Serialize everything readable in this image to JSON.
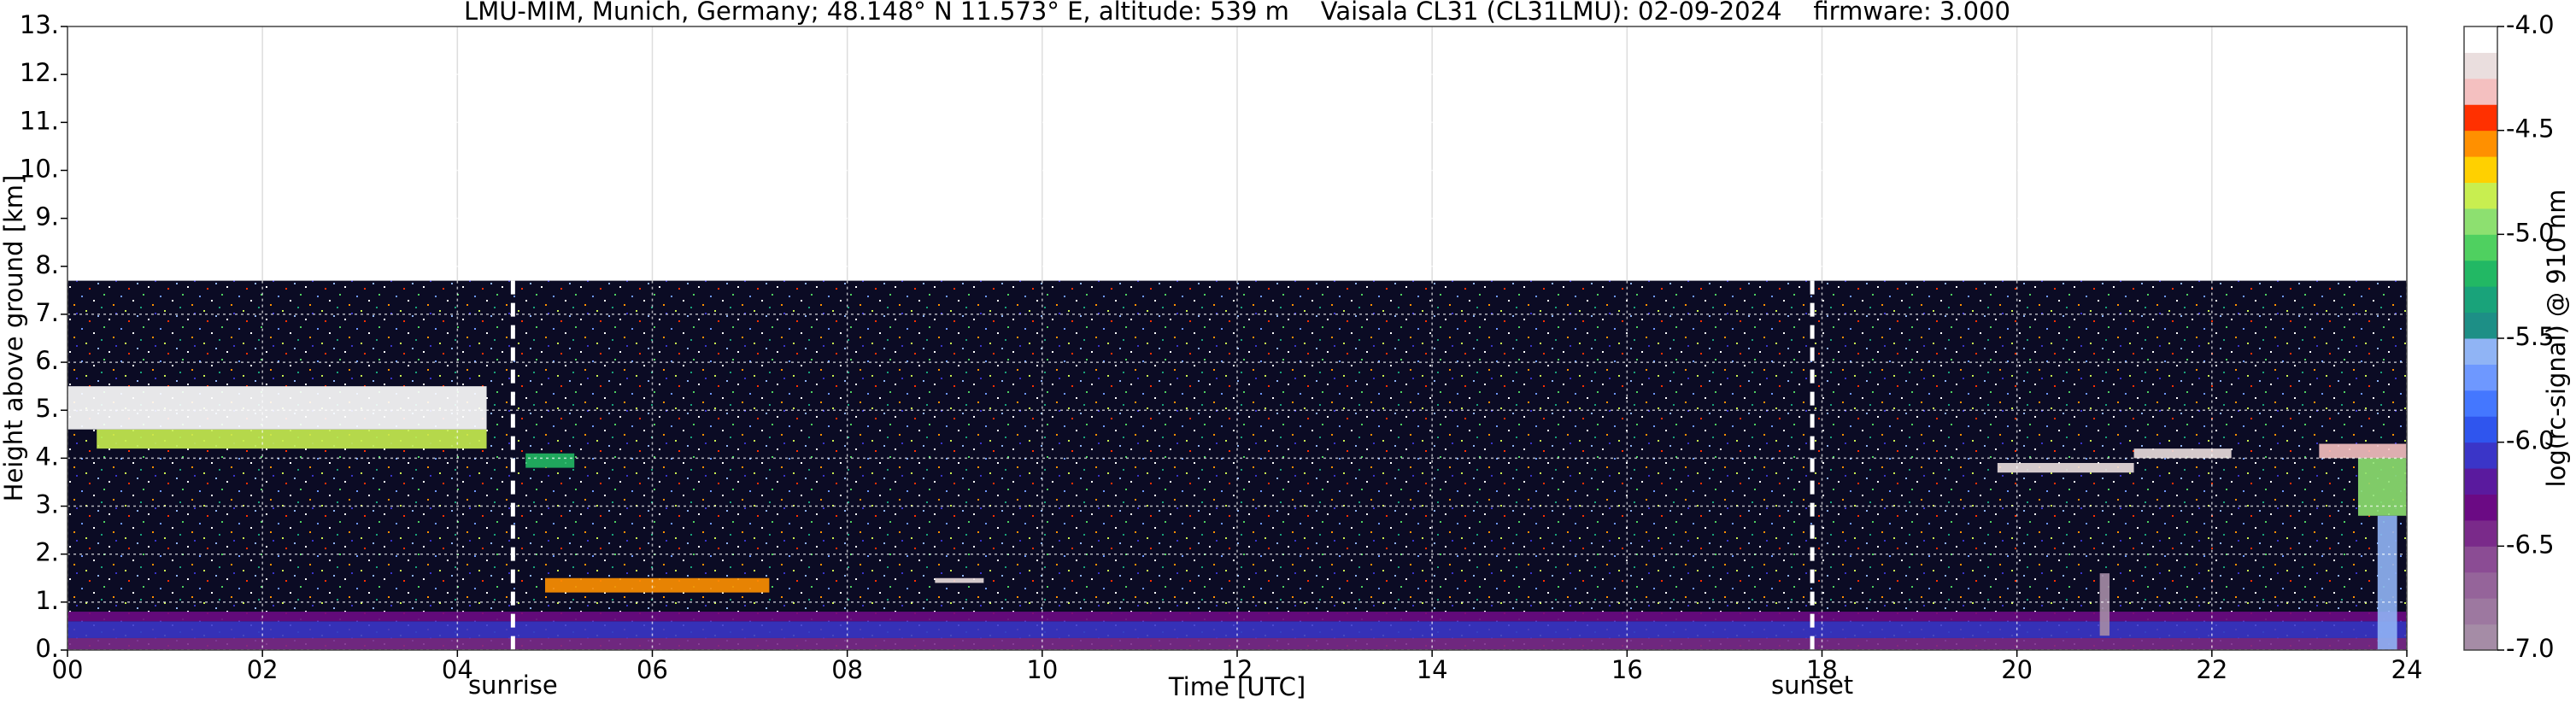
{
  "chart_data": {
    "type": "heatmap",
    "title": "LMU-MIM, Munich, Germany; 48.148° N 11.573° E, altitude: 539 m    Vaisala CL31 (CL31LMU): 02-09-2024    firmware: 3.000",
    "xlabel": "Time [UTC]",
    "ylabel": "Height above ground [km]",
    "colorbar_label": "log(rc-signal) @ 910 nm",
    "xlim": [
      0,
      24
    ],
    "ylim": [
      0,
      13
    ],
    "xticks": [
      {
        "value": 0,
        "label": "00"
      },
      {
        "value": 2,
        "label": "02"
      },
      {
        "value": 4,
        "label": "04"
      },
      {
        "value": 6,
        "label": "06"
      },
      {
        "value": 8,
        "label": "08"
      },
      10,
      12,
      14,
      16,
      18,
      20,
      22,
      24
    ],
    "yticks": [
      {
        "value": 0,
        "label": "0."
      },
      {
        "value": 1,
        "label": "1."
      },
      {
        "value": 2,
        "label": "2."
      },
      {
        "value": 3,
        "label": "3."
      },
      {
        "value": 4,
        "label": "4."
      },
      {
        "value": 5,
        "label": "5."
      },
      {
        "value": 6,
        "label": "6."
      },
      {
        "value": 7,
        "label": "7."
      },
      {
        "value": 8,
        "label": "8."
      },
      {
        "value": 9,
        "label": "9."
      },
      {
        "value": 10,
        "label": "10."
      },
      {
        "value": 11,
        "label": "11."
      },
      {
        "value": 12,
        "label": "12."
      },
      {
        "value": 13,
        "label": "13."
      }
    ],
    "clim": [
      -7,
      -4
    ],
    "cticks": [
      {
        "value": -4,
        "label": "-4.0"
      },
      {
        "value": -4.5,
        "label": "-4.5"
      },
      {
        "value": -5,
        "label": "-5.0"
      },
      {
        "value": -5.5,
        "label": "-5.5"
      },
      {
        "value": -6,
        "label": "-6.0"
      },
      {
        "value": -6.5,
        "label": "-6.5"
      },
      {
        "value": -7,
        "label": "-7.0"
      }
    ],
    "colors": [
      "#a58ca6",
      "#9d78a0",
      "#95649a",
      "#8b4c94",
      "#7a2a8a",
      "#6b0a84",
      "#5a1a9e",
      "#3a35c8",
      "#2f55ee",
      "#4477ff",
      "#6e98ff",
      "#90b4f5",
      "#1d8f86",
      "#19a37a",
      "#22b864",
      "#4fd060",
      "#8de070",
      "#c8ee50",
      "#ffd000",
      "#ff9000",
      "#ff3000",
      "#f4c0c0",
      "#eadede",
      "#ffffff"
    ],
    "grid": true,
    "profile_top": 7.7,
    "features": [
      {
        "x": [
          0,
          24
        ],
        "y": [
          0,
          0.25
        ],
        "value": -6.45
      },
      {
        "x": [
          0,
          24
        ],
        "y": [
          0.25,
          0.6
        ],
        "value": -6.05
      },
      {
        "x": [
          0,
          24
        ],
        "y": [
          0.6,
          0.8
        ],
        "value": -6.3
      },
      {
        "x": [
          0.3,
          4.3
        ],
        "y": [
          4.2,
          4.6
        ],
        "value": -4.8
      },
      {
        "x": [
          0,
          4.3
        ],
        "y": [
          4.6,
          5.5
        ],
        "value": -4.1
      },
      {
        "x": [
          4.7,
          5.2
        ],
        "y": [
          3.8,
          4.1
        ],
        "value": -5.2
      },
      {
        "x": [
          4.9,
          7.2
        ],
        "y": [
          1.2,
          1.5
        ],
        "value": -4.6
      },
      {
        "x": [
          8.9,
          9.4
        ],
        "y": [
          1.4,
          1.5
        ],
        "value": -4.2
      },
      {
        "x": [
          19.8,
          21.2
        ],
        "y": [
          3.7,
          3.9
        ],
        "value": -4.2
      },
      {
        "x": [
          21.2,
          22.2
        ],
        "y": [
          4.0,
          4.2
        ],
        "value": -4.2
      },
      {
        "x": [
          23.1,
          24
        ],
        "y": [
          4.0,
          4.3
        ],
        "value": -4.3
      },
      {
        "x": [
          23.5,
          24
        ],
        "y": [
          2.8,
          4.0
        ],
        "value": -4.9
      },
      {
        "x": [
          23.7,
          23.9
        ],
        "y": [
          0,
          2.8
        ],
        "value": -5.6
      },
      {
        "x": [
          20.85,
          20.95
        ],
        "y": [
          0.3,
          1.6
        ],
        "value": -6.9
      }
    ],
    "annotations": [
      {
        "x": 4.57,
        "label": "sunrise"
      },
      {
        "x": 17.9,
        "label": "sunset"
      }
    ]
  }
}
